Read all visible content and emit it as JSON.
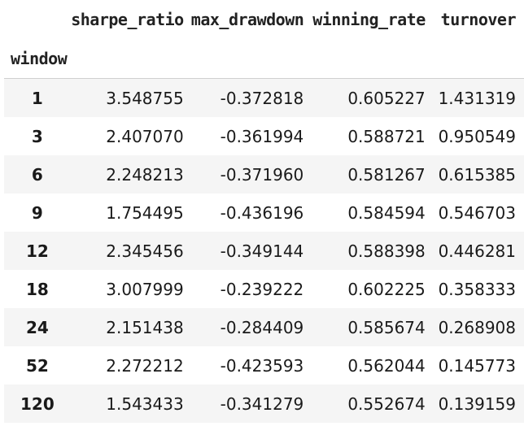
{
  "table": {
    "index_name": "window",
    "columns": [
      "sharpe_ratio",
      "max_drawdown",
      "winning_rate",
      "turnover"
    ],
    "rows": [
      {
        "window": "1",
        "sharpe_ratio": "3.548755",
        "max_drawdown": "-0.372818",
        "winning_rate": "0.605227",
        "turnover": "1.431319"
      },
      {
        "window": "3",
        "sharpe_ratio": "2.407070",
        "max_drawdown": "-0.361994",
        "winning_rate": "0.588721",
        "turnover": "0.950549"
      },
      {
        "window": "6",
        "sharpe_ratio": "2.248213",
        "max_drawdown": "-0.371960",
        "winning_rate": "0.581267",
        "turnover": "0.615385"
      },
      {
        "window": "9",
        "sharpe_ratio": "1.754495",
        "max_drawdown": "-0.436196",
        "winning_rate": "0.584594",
        "turnover": "0.546703"
      },
      {
        "window": "12",
        "sharpe_ratio": "2.345456",
        "max_drawdown": "-0.349144",
        "winning_rate": "0.588398",
        "turnover": "0.446281"
      },
      {
        "window": "18",
        "sharpe_ratio": "3.007999",
        "max_drawdown": "-0.239222",
        "winning_rate": "0.602225",
        "turnover": "0.358333"
      },
      {
        "window": "24",
        "sharpe_ratio": "2.151438",
        "max_drawdown": "-0.284409",
        "winning_rate": "0.585674",
        "turnover": "0.268908"
      },
      {
        "window": "52",
        "sharpe_ratio": "2.272212",
        "max_drawdown": "-0.423593",
        "winning_rate": "0.562044",
        "turnover": "0.145773"
      },
      {
        "window": "120",
        "sharpe_ratio": "1.543433",
        "max_drawdown": "-0.341279",
        "winning_rate": "0.552674",
        "turnover": "0.139159"
      }
    ]
  },
  "colors": {
    "row_stripe": "#f5f5f5",
    "row_plain": "#ffffff",
    "header_rule": "#d0d0d0",
    "text": "#1a1a1a"
  }
}
